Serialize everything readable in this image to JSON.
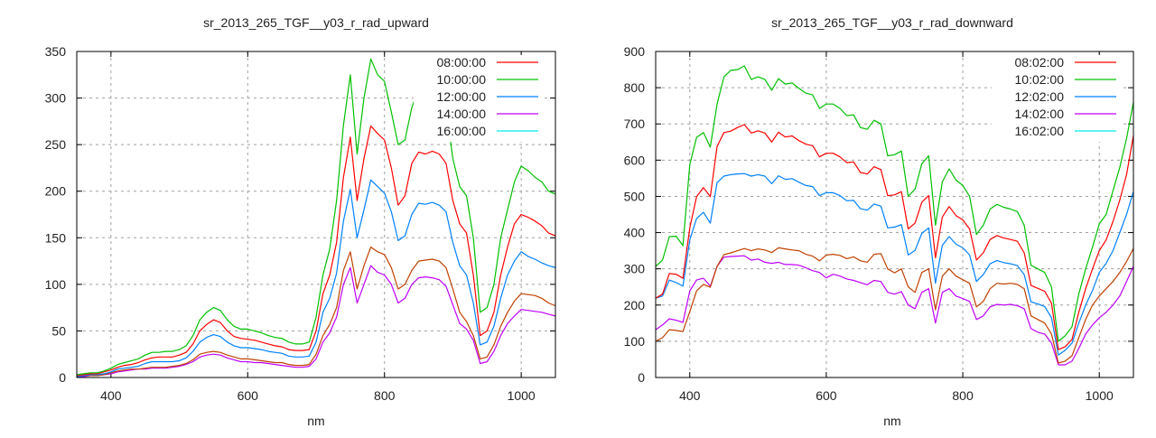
{
  "chart_data": [
    {
      "type": "line",
      "title": "sr_2013_265_TGF__y03_r_rad_upward",
      "xlabel": "nm",
      "ylabel": "",
      "xlim": [
        350,
        1050
      ],
      "ylim": [
        0,
        350
      ],
      "xticks": [
        400,
        600,
        800,
        1000
      ],
      "yticks": [
        0,
        50,
        100,
        150,
        200,
        250,
        300,
        350
      ],
      "grid": true,
      "legend_placement": "top-right",
      "x": {
        "start": 350,
        "step": 10
      },
      "series": [
        {
          "name": "08:00:00",
          "legend_color": "#ff0000",
          "line_color": "#ff0000",
          "values": [
            2,
            3,
            4,
            4,
            6,
            8,
            11,
            13,
            14,
            16,
            19,
            21,
            22,
            22,
            22,
            24,
            27,
            36,
            50,
            57,
            62,
            59,
            50,
            44,
            42,
            41,
            40,
            38,
            36,
            34,
            33,
            30,
            29,
            29,
            30,
            50,
            90,
            110,
            145,
            215,
            258,
            190,
            235,
            270,
            262,
            255,
            225,
            185,
            195,
            230,
            242,
            240,
            243,
            240,
            230,
            190,
            165,
            155,
            110,
            45,
            50,
            70,
            110,
            140,
            165,
            175,
            172,
            168,
            163,
            155,
            152
          ]
        },
        {
          "name": "10:00:00",
          "legend_color": "#00c000",
          "line_color": "#00c000",
          "values": [
            3,
            4,
            5,
            5,
            7,
            10,
            14,
            16,
            18,
            20,
            24,
            27,
            27,
            28,
            28,
            30,
            34,
            45,
            62,
            70,
            75,
            72,
            62,
            55,
            52,
            52,
            50,
            48,
            45,
            43,
            42,
            38,
            36,
            36,
            38,
            65,
            110,
            138,
            190,
            271,
            325,
            240,
            300,
            342,
            325,
            318,
            285,
            250,
            255,
            290,
            310,
            305,
            308,
            300,
            290,
            235,
            205,
            195,
            150,
            70,
            75,
            100,
            150,
            180,
            210,
            227,
            222,
            215,
            210,
            200,
            197
          ]
        },
        {
          "name": "12:00:00",
          "legend_color": "#0080ff",
          "line_color": "#0080ff",
          "values": [
            1,
            2,
            3,
            3,
            4,
            6,
            9,
            10,
            11,
            12,
            15,
            17,
            17,
            17,
            17,
            18,
            21,
            28,
            38,
            43,
            46,
            44,
            38,
            34,
            32,
            32,
            31,
            30,
            28,
            27,
            26,
            23,
            22,
            22,
            23,
            38,
            70,
            85,
            112,
            168,
            202,
            150,
            180,
            212,
            205,
            198,
            178,
            147,
            152,
            175,
            187,
            186,
            188,
            185,
            178,
            145,
            120,
            110,
            80,
            35,
            38,
            55,
            85,
            110,
            125,
            135,
            130,
            127,
            123,
            120,
            118
          ]
        },
        {
          "name": "14:00:00",
          "legend_color": "#c000ff",
          "line_color": "#c04000",
          "values": [
            1,
            2,
            2,
            2,
            3,
            5,
            7,
            8,
            9,
            9,
            10,
            11,
            11,
            11,
            12,
            13,
            15,
            19,
            25,
            27,
            28,
            27,
            24,
            22,
            20,
            20,
            19,
            18,
            17,
            16,
            16,
            14,
            13,
            13,
            14,
            25,
            45,
            57,
            75,
            115,
            135,
            95,
            120,
            140,
            135,
            132,
            118,
            95,
            100,
            115,
            125,
            126,
            127,
            125,
            118,
            95,
            70,
            60,
            45,
            20,
            22,
            35,
            55,
            70,
            82,
            90,
            89,
            88,
            85,
            80,
            77
          ]
        },
        {
          "name": "16:00:00",
          "legend_color": "#00eeee",
          "line_color": "#c000ff",
          "values": [
            1,
            1,
            2,
            2,
            3,
            4,
            6,
            7,
            8,
            9,
            9,
            10,
            10,
            10,
            11,
            12,
            14,
            17,
            22,
            24,
            25,
            24,
            21,
            19,
            17,
            17,
            16,
            16,
            15,
            14,
            13,
            12,
            11,
            11,
            12,
            20,
            38,
            48,
            65,
            100,
            118,
            80,
            100,
            120,
            113,
            110,
            100,
            80,
            85,
            100,
            107,
            108,
            107,
            105,
            98,
            78,
            58,
            52,
            40,
            15,
            17,
            28,
            45,
            58,
            66,
            73,
            72,
            71,
            70,
            68,
            66
          ]
        }
      ]
    },
    {
      "type": "line",
      "title": "sr_2013_265_TGF__y03_r_rad_downward",
      "xlabel": "nm",
      "ylabel": "",
      "xlim": [
        350,
        1050
      ],
      "ylim": [
        0,
        900
      ],
      "xticks": [
        400,
        600,
        800,
        1000
      ],
      "yticks": [
        0,
        100,
        200,
        300,
        400,
        500,
        600,
        700,
        800,
        900
      ],
      "grid": true,
      "legend_placement": "top-right",
      "x": {
        "start": 350,
        "step": 10
      },
      "series": [
        {
          "name": "08:02:00",
          "legend_color": "#ff0000",
          "line_color": "#ff0000",
          "values": [
            219,
            230,
            287,
            285,
            274,
            413,
            499,
            524,
            499,
            638,
            676,
            680,
            690,
            698,
            675,
            681,
            675,
            650,
            677,
            664,
            667,
            654,
            644,
            640,
            609,
            619,
            619,
            609,
            593,
            595,
            566,
            562,
            582,
            574,
            502,
            504,
            513,
            410,
            426,
            484,
            502,
            330,
            443,
            472,
            447,
            435,
            410,
            324,
            344,
            381,
            392,
            385,
            381,
            376,
            344,
            254,
            246,
            238,
            205,
            77,
            85,
            105,
            180,
            245,
            300,
            350,
            380,
            430,
            490,
            560,
            668
          ]
        },
        {
          "name": "10:02:00",
          "legend_color": "#00c000",
          "line_color": "#00c000",
          "values": [
            307,
            324,
            389,
            390,
            364,
            588,
            663,
            676,
            636,
            755,
            830,
            848,
            850,
            860,
            823,
            830,
            823,
            793,
            825,
            810,
            813,
            798,
            785,
            780,
            743,
            755,
            755,
            743,
            723,
            725,
            690,
            685,
            710,
            700,
            612,
            615,
            625,
            500,
            520,
            590,
            612,
            420,
            540,
            576,
            545,
            530,
            500,
            395,
            420,
            465,
            478,
            470,
            465,
            458,
            420,
            310,
            300,
            290,
            250,
            100,
            115,
            140,
            230,
            300,
            360,
            424,
            450,
            515,
            580,
            660,
            760
          ]
        },
        {
          "name": "12:02:00",
          "legend_color": "#0080ff",
          "line_color": "#0080ff",
          "values": [
            219,
            225,
            269,
            262,
            252,
            380,
            439,
            456,
            426,
            538,
            556,
            560,
            562,
            563,
            556,
            560,
            556,
            535,
            557,
            547,
            549,
            539,
            530,
            527,
            502,
            510,
            510,
            502,
            488,
            489,
            466,
            462,
            479,
            473,
            413,
            415,
            422,
            338,
            351,
            398,
            413,
            260,
            365,
            389,
            368,
            358,
            338,
            265,
            284,
            314,
            323,
            317,
            314,
            309,
            284,
            209,
            203,
            196,
            165,
            62,
            75,
            95,
            150,
            200,
            240,
            290,
            315,
            350,
            400,
            450,
            513
          ]
        },
        {
          "name": "14:02:00",
          "legend_color": "#c000ff",
          "line_color": "#c04000",
          "values": [
            100,
            110,
            132,
            130,
            127,
            182,
            239,
            257,
            249,
            307,
            339,
            344,
            350,
            356,
            350,
            355,
            352,
            345,
            358,
            355,
            352,
            350,
            340,
            335,
            322,
            338,
            340,
            337,
            328,
            333,
            322,
            318,
            340,
            342,
            300,
            289,
            300,
            250,
            235,
            290,
            300,
            187,
            280,
            300,
            280,
            270,
            260,
            195,
            210,
            245,
            260,
            258,
            260,
            257,
            245,
            170,
            160,
            150,
            120,
            40,
            45,
            60,
            110,
            160,
            200,
            225,
            245,
            265,
            290,
            320,
            356
          ]
        },
        {
          "name": "16:02:00",
          "legend_color": "#00eeee",
          "line_color": "#c000ff",
          "values": [
            132,
            145,
            162,
            158,
            152,
            239,
            269,
            274,
            252,
            307,
            332,
            334,
            335,
            336,
            324,
            327,
            318,
            315,
            318,
            312,
            312,
            310,
            303,
            295,
            290,
            275,
            285,
            280,
            272,
            268,
            262,
            256,
            268,
            265,
            235,
            230,
            237,
            200,
            190,
            235,
            245,
            150,
            235,
            245,
            225,
            218,
            210,
            160,
            170,
            195,
            202,
            200,
            202,
            198,
            190,
            135,
            125,
            120,
            95,
            35,
            35,
            45,
            80,
            120,
            145,
            165,
            180,
            200,
            225,
            265,
            307
          ]
        }
      ]
    }
  ]
}
